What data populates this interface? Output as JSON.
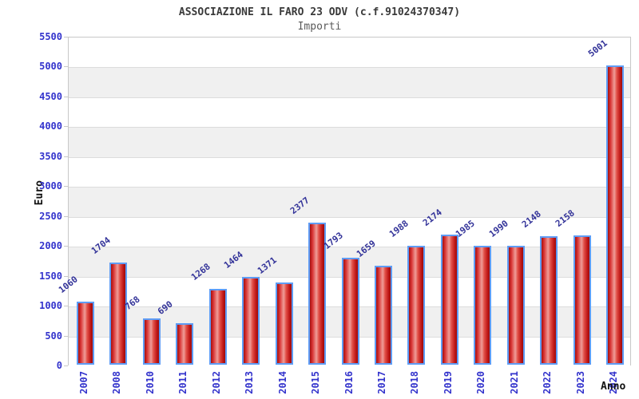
{
  "chart_data": {
    "type": "bar",
    "title": "ASSOCIAZIONE IL FARO 23 ODV (c.f.91024370347)",
    "subtitle": "Importi",
    "xlabel": "Anno",
    "ylabel": "Euro",
    "categories": [
      "2007",
      "2008",
      "2010",
      "2011",
      "2012",
      "2013",
      "2014",
      "2015",
      "2016",
      "2017",
      "2018",
      "2019",
      "2020",
      "2021",
      "2022",
      "2023",
      "2024"
    ],
    "values": [
      1060,
      1704,
      768,
      690,
      1268,
      1464,
      1371,
      2377,
      1793,
      1659,
      1988,
      2174,
      1985,
      1990,
      2148,
      2158,
      5001
    ],
    "ylim": [
      0,
      5500
    ],
    "ytick_step": 500,
    "ytick_labels": [
      "0",
      "500",
      "1000",
      "1500",
      "2000",
      "2500",
      "3000",
      "3500",
      "4000",
      "4500",
      "5000",
      "5500"
    ],
    "grid": "horizontal-bands-alternating",
    "legend": "none",
    "value_labels_shown": true,
    "value_label_rotation_deg": -38,
    "x_label_rotation": "vertical",
    "colors": {
      "bar_border": "#5e9cf5",
      "bar_fill_dark": "#a50f0f",
      "bar_fill_mid": "#d93535",
      "bar_fill_highlight": "#ef9d98",
      "tick_label": "#3333cc",
      "value_label": "#333399",
      "band_gray": "#f0f0f0",
      "band_white": "#ffffff",
      "grid_line": "#dcdcdc",
      "plot_border": "#c8c8c8",
      "title": "#3a3a3a",
      "subtitle": "#5a5a5a",
      "axis_title": "#111111"
    }
  }
}
